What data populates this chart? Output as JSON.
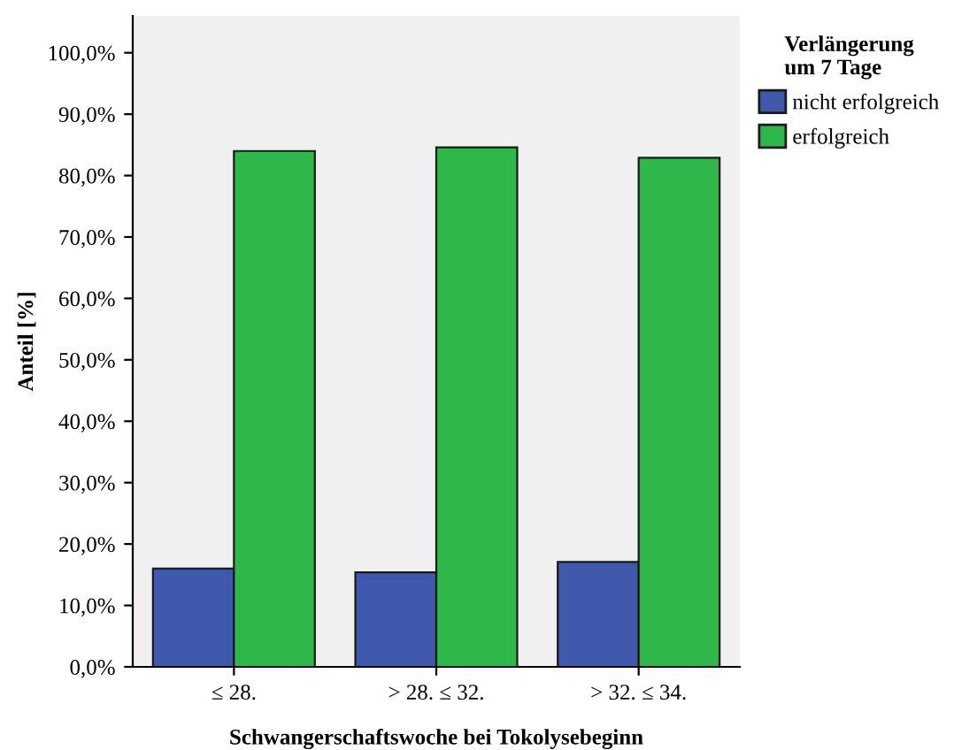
{
  "chart_data": {
    "type": "bar",
    "xlabel": "Schwangerschaftswoche bei Tokolysebeginn",
    "ylabel": "Anteil [%]",
    "legend_title": "Verlängerung\num 7 Tage",
    "categories": [
      "≤ 28.",
      "> 28. ≤ 32.",
      "> 32. ≤ 34."
    ],
    "series": [
      {
        "name": "nicht erfolgreich",
        "color": "#3e58ac",
        "values": [
          16.0,
          15.4,
          17.1
        ]
      },
      {
        "name": "erfolgreich",
        "color": "#2eb84a",
        "values": [
          84.0,
          84.6,
          82.9
        ]
      }
    ],
    "ylim": [
      0,
      106
    ],
    "yticks": [
      {
        "value": 0,
        "label": "0,0%"
      },
      {
        "value": 10,
        "label": "10,0%"
      },
      {
        "value": 20,
        "label": "20,0%"
      },
      {
        "value": 30,
        "label": "30,0%"
      },
      {
        "value": 40,
        "label": "40,0%"
      },
      {
        "value": 50,
        "label": "50,0%"
      },
      {
        "value": 60,
        "label": "60,0%"
      },
      {
        "value": 70,
        "label": "70,0%"
      },
      {
        "value": 80,
        "label": "80,0%"
      },
      {
        "value": 90,
        "label": "90,0%"
      },
      {
        "value": 100,
        "label": "100,0%"
      }
    ],
    "grid": false,
    "legend": "top right"
  }
}
